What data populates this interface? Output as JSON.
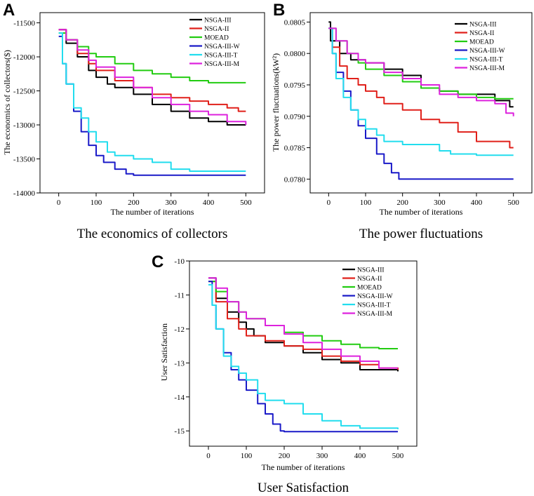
{
  "chart_data": [
    {
      "panel": "A",
      "type": "line",
      "title": "The economics of collectors",
      "xlabel": "The number of iterations",
      "ylabel": "The economics of collectors($)",
      "xlim": [
        -50,
        550
      ],
      "ylim": [
        -14000,
        -11350
      ],
      "xticks": [
        0,
        100,
        200,
        300,
        400,
        500
      ],
      "yticks": [
        -11500,
        -12000,
        -12500,
        -13000,
        -13500,
        -14000
      ],
      "yticklabels": [
        "-11500",
        "-12000",
        "-12500",
        "-13000",
        "-13500",
        "-14000"
      ],
      "legend": "top-right",
      "series": [
        {
          "name": "NSGA-III",
          "color": "#000000",
          "x": [
            0,
            20,
            50,
            80,
            100,
            130,
            150,
            200,
            250,
            300,
            350,
            400,
            450,
            500
          ],
          "y": [
            -11600,
            -11800,
            -12000,
            -12200,
            -12300,
            -12400,
            -12450,
            -12550,
            -12700,
            -12800,
            -12900,
            -12950,
            -13000,
            -13000
          ]
        },
        {
          "name": "NSGA-II",
          "color": "#e0201a",
          "x": [
            0,
            20,
            50,
            80,
            100,
            150,
            200,
            250,
            300,
            350,
            400,
            450,
            480,
            500
          ],
          "y": [
            -11600,
            -11750,
            -11950,
            -12100,
            -12200,
            -12350,
            -12450,
            -12550,
            -12600,
            -12650,
            -12700,
            -12750,
            -12800,
            -12800
          ]
        },
        {
          "name": "MOEAD",
          "color": "#22cc11",
          "x": [
            0,
            20,
            50,
            80,
            100,
            150,
            200,
            250,
            300,
            350,
            400,
            450,
            500
          ],
          "y": [
            -11650,
            -11750,
            -11850,
            -11950,
            -12000,
            -12100,
            -12200,
            -12250,
            -12300,
            -12350,
            -12380,
            -12380,
            -12380
          ]
        },
        {
          "name": "NSGA-III-W",
          "color": "#1a1ac8",
          "x": [
            0,
            10,
            20,
            40,
            60,
            80,
            100,
            120,
            150,
            180,
            200,
            300,
            400,
            500
          ],
          "y": [
            -11700,
            -12100,
            -12400,
            -12800,
            -13100,
            -13300,
            -13450,
            -13550,
            -13650,
            -13720,
            -13740,
            -13740,
            -13740,
            -13740
          ]
        },
        {
          "name": "NSGA-III-T",
          "color": "#22ddee",
          "x": [
            0,
            10,
            20,
            40,
            60,
            80,
            100,
            130,
            150,
            200,
            250,
            300,
            350,
            400,
            450,
            500
          ],
          "y": [
            -11650,
            -12100,
            -12400,
            -12750,
            -12900,
            -13100,
            -13250,
            -13400,
            -13450,
            -13500,
            -13550,
            -13650,
            -13680,
            -13680,
            -13680,
            -13680
          ]
        },
        {
          "name": "NSGA-III-M",
          "color": "#dd22dd",
          "x": [
            0,
            20,
            50,
            80,
            100,
            150,
            200,
            250,
            300,
            350,
            400,
            450,
            500
          ],
          "y": [
            -11600,
            -11750,
            -11900,
            -12050,
            -12150,
            -12300,
            -12450,
            -12600,
            -12700,
            -12800,
            -12850,
            -12950,
            -13000
          ]
        }
      ]
    },
    {
      "panel": "B",
      "type": "line",
      "title": "The power fluctuations",
      "xlabel": "The number of iterations",
      "ylabel": "The power fluctuations(kW²)",
      "xlim": [
        -50,
        550
      ],
      "ylim": [
        0.07778,
        0.08065
      ],
      "xticks": [
        0,
        100,
        200,
        300,
        400,
        500
      ],
      "yticks": [
        0.078,
        0.0785,
        0.079,
        0.0795,
        0.08,
        0.0805
      ],
      "yticklabels": [
        "0.0780",
        "0.0785",
        "0.0790",
        "0.0795",
        "0.0800",
        "0.0805"
      ],
      "legend": "top-right",
      "series": [
        {
          "name": "NSGA-III",
          "color": "#000000",
          "x": [
            0,
            5,
            30,
            60,
            100,
            150,
            200,
            250,
            300,
            350,
            400,
            450,
            490,
            500
          ],
          "y": [
            0.0805,
            0.0802,
            0.08,
            0.0799,
            0.07985,
            0.07975,
            0.07965,
            0.07945,
            0.0794,
            0.07935,
            0.07935,
            0.07925,
            0.07915,
            0.07915
          ]
        },
        {
          "name": "NSGA-II",
          "color": "#e0201a",
          "x": [
            0,
            10,
            30,
            50,
            80,
            100,
            130,
            150,
            200,
            250,
            300,
            350,
            400,
            450,
            490,
            500
          ],
          "y": [
            0.0804,
            0.0801,
            0.0798,
            0.0796,
            0.0795,
            0.0794,
            0.0793,
            0.0792,
            0.0791,
            0.07895,
            0.0789,
            0.07875,
            0.0786,
            0.0786,
            0.0785,
            0.0785
          ]
        },
        {
          "name": "MOEAD",
          "color": "#22cc11",
          "x": [
            0,
            20,
            50,
            80,
            100,
            150,
            200,
            250,
            300,
            350,
            400,
            450,
            500
          ],
          "y": [
            0.0804,
            0.0802,
            0.08,
            0.07985,
            0.07975,
            0.07965,
            0.07955,
            0.07945,
            0.0794,
            0.07935,
            0.0793,
            0.07928,
            0.07928
          ]
        },
        {
          "name": "NSGA-III-W",
          "color": "#1a1ac8",
          "x": [
            0,
            10,
            20,
            40,
            60,
            80,
            100,
            130,
            150,
            170,
            190,
            200,
            300,
            400,
            500
          ],
          "y": [
            0.0804,
            0.08,
            0.0797,
            0.0794,
            0.0791,
            0.07885,
            0.07865,
            0.0784,
            0.07825,
            0.0781,
            0.078,
            0.078,
            0.078,
            0.078,
            0.078
          ]
        },
        {
          "name": "NSGA-III-T",
          "color": "#22ddee",
          "x": [
            0,
            10,
            20,
            40,
            60,
            80,
            100,
            130,
            150,
            200,
            250,
            300,
            330,
            400,
            450,
            500
          ],
          "y": [
            0.0804,
            0.08,
            0.0796,
            0.0793,
            0.0791,
            0.07895,
            0.0788,
            0.0787,
            0.0786,
            0.07855,
            0.07855,
            0.07845,
            0.0784,
            0.07838,
            0.07838,
            0.07838
          ]
        },
        {
          "name": "NSGA-III-M",
          "color": "#dd22dd",
          "x": [
            0,
            20,
            50,
            80,
            100,
            150,
            200,
            250,
            300,
            350,
            400,
            450,
            480,
            500
          ],
          "y": [
            0.0804,
            0.0802,
            0.08,
            0.0799,
            0.07985,
            0.0797,
            0.0796,
            0.0795,
            0.07935,
            0.0793,
            0.07925,
            0.0792,
            0.07905,
            0.079
          ]
        }
      ]
    },
    {
      "panel": "C",
      "type": "line",
      "title": "User Satisfaction",
      "xlabel": "The number of iterations",
      "ylabel": "User Satisfaction",
      "xlim": [
        -50,
        550
      ],
      "ylim": [
        -15.45,
        -10
      ],
      "xticks": [
        0,
        100,
        200,
        300,
        400,
        500
      ],
      "yticks": [
        -10,
        -11,
        -12,
        -13,
        -14,
        -15
      ],
      "yticklabels": [
        "-10",
        "-11",
        "-12",
        "-13",
        "-14",
        "-15"
      ],
      "legend": "top-right",
      "series": [
        {
          "name": "NSGA-III",
          "color": "#000000",
          "x": [
            0,
            20,
            50,
            80,
            100,
            120,
            150,
            200,
            250,
            300,
            350,
            400,
            450,
            500
          ],
          "y": [
            -10.5,
            -11.1,
            -11.5,
            -11.8,
            -12.0,
            -12.2,
            -12.4,
            -12.5,
            -12.7,
            -12.9,
            -13.0,
            -13.2,
            -13.2,
            -13.25
          ]
        },
        {
          "name": "NSGA-II",
          "color": "#e0201a",
          "x": [
            0,
            20,
            50,
            80,
            100,
            150,
            200,
            250,
            300,
            350,
            400,
            450,
            500
          ],
          "y": [
            -10.6,
            -11.2,
            -11.7,
            -12.0,
            -12.2,
            -12.35,
            -12.5,
            -12.6,
            -12.8,
            -12.95,
            -13.05,
            -13.15,
            -13.2
          ]
        },
        {
          "name": "MOEAD",
          "color": "#22cc11",
          "x": [
            0,
            20,
            50,
            80,
            100,
            150,
            200,
            250,
            300,
            350,
            400,
            450,
            500
          ],
          "y": [
            -10.6,
            -10.9,
            -11.2,
            -11.5,
            -11.7,
            -11.9,
            -12.1,
            -12.2,
            -12.35,
            -12.45,
            -12.55,
            -12.58,
            -12.58
          ]
        },
        {
          "name": "NSGA-III-W",
          "color": "#1a1ac8",
          "x": [
            0,
            10,
            20,
            40,
            60,
            80,
            100,
            130,
            150,
            170,
            190,
            200,
            300,
            400,
            500
          ],
          "y": [
            -10.6,
            -11.3,
            -12.0,
            -12.7,
            -13.2,
            -13.5,
            -13.8,
            -14.2,
            -14.5,
            -14.8,
            -15.0,
            -15.02,
            -15.02,
            -15.02,
            -15.02
          ]
        },
        {
          "name": "NSGA-III-T",
          "color": "#22ddee",
          "x": [
            0,
            10,
            20,
            40,
            60,
            80,
            100,
            130,
            150,
            200,
            250,
            300,
            350,
            400,
            450,
            500
          ],
          "y": [
            -10.7,
            -11.3,
            -12.0,
            -12.8,
            -13.1,
            -13.3,
            -13.5,
            -13.9,
            -14.1,
            -14.2,
            -14.5,
            -14.7,
            -14.85,
            -14.92,
            -14.92,
            -14.95
          ]
        },
        {
          "name": "NSGA-III-M",
          "color": "#dd22dd",
          "x": [
            0,
            20,
            50,
            80,
            100,
            150,
            200,
            250,
            300,
            350,
            400,
            450,
            500
          ],
          "y": [
            -10.5,
            -10.8,
            -11.2,
            -11.5,
            -11.7,
            -11.9,
            -12.15,
            -12.4,
            -12.6,
            -12.8,
            -12.95,
            -13.15,
            -13.15
          ]
        }
      ]
    }
  ]
}
